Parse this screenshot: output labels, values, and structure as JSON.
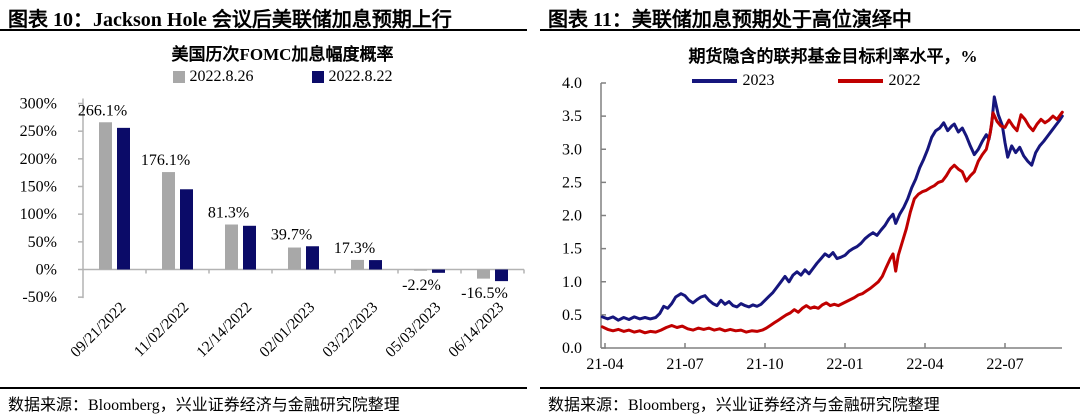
{
  "panels": {
    "left": {
      "header": "图表 10：Jackson Hole 会议后美联储加息预期上行",
      "source": "数据来源：Bloomberg，兴业证券经济与金融研究院整理"
    },
    "right": {
      "header": "图表 11：美联储加息预期处于高位演绎中",
      "source": "数据来源：Bloomberg，兴业证券经济与金融研究院整理"
    }
  },
  "colors": {
    "bar_gray": "#a8a8a8",
    "bar_navy": "#0b0b68",
    "line_navy": "#16167d",
    "line_red": "#c00000",
    "axis_left": "#b3b3b3",
    "axis_right": "#808080",
    "rule_black": "#000000"
  },
  "chart_data": [
    {
      "type": "bar",
      "title": "美国历次FOMC加息幅度概率",
      "categories": [
        "09/21/2022",
        "11/02/2022",
        "12/14/2022",
        "02/01/2023",
        "03/22/2023",
        "05/03/2023",
        "06/14/2023"
      ],
      "series": [
        {
          "name": "2022.8.26",
          "color": "#a8a8a8",
          "values": [
            266.1,
            176.1,
            81.3,
            39.7,
            17.3,
            -2.2,
            -16.5
          ]
        },
        {
          "name": "2022.8.22",
          "color": "#0b0b68",
          "values": [
            256,
            145,
            79,
            42,
            17,
            -6,
            -21
          ]
        }
      ],
      "data_labels": [
        "266.1%",
        "176.1%",
        "81.3%",
        "39.7%",
        "17.3%",
        "-2.2%",
        "-16.5%"
      ],
      "y_ticks": [
        "300%",
        "250%",
        "200%",
        "150%",
        "100%",
        "50%",
        "0%",
        "-50%"
      ],
      "y_tick_values": [
        300,
        250,
        200,
        150,
        100,
        50,
        0,
        -50
      ],
      "ylim": [
        -50,
        300
      ],
      "grid": false,
      "legend_position": "top"
    },
    {
      "type": "line",
      "title": "期货隐含的联邦基金目标利率水平，%",
      "x_ticks": [
        "21-04",
        "21-07",
        "21-10",
        "22-01",
        "22-04",
        "22-07"
      ],
      "y_ticks": [
        "4.0",
        "3.5",
        "3.0",
        "2.5",
        "2.0",
        "1.5",
        "1.0",
        "0.5",
        "0.0"
      ],
      "ylim": [
        0,
        4
      ],
      "x_domain_months": [
        -0.1,
        17.15
      ],
      "grid": false,
      "legend_position": "top",
      "series": [
        {
          "name": "2023",
          "color": "#16167d",
          "points": [
            [
              -0.1,
              0.47
            ],
            [
              0.1,
              0.44
            ],
            [
              0.3,
              0.47
            ],
            [
              0.5,
              0.42
            ],
            [
              0.7,
              0.46
            ],
            [
              0.9,
              0.43
            ],
            [
              1.1,
              0.47
            ],
            [
              1.3,
              0.44
            ],
            [
              1.5,
              0.46
            ],
            [
              1.7,
              0.44
            ],
            [
              1.9,
              0.46
            ],
            [
              2.05,
              0.52
            ],
            [
              2.2,
              0.63
            ],
            [
              2.35,
              0.6
            ],
            [
              2.5,
              0.67
            ],
            [
              2.65,
              0.77
            ],
            [
              2.85,
              0.82
            ],
            [
              3.0,
              0.79
            ],
            [
              3.15,
              0.72
            ],
            [
              3.3,
              0.68
            ],
            [
              3.45,
              0.73
            ],
            [
              3.6,
              0.77
            ],
            [
              3.75,
              0.79
            ],
            [
              3.9,
              0.72
            ],
            [
              4.05,
              0.67
            ],
            [
              4.2,
              0.64
            ],
            [
              4.35,
              0.72
            ],
            [
              4.5,
              0.66
            ],
            [
              4.65,
              0.7
            ],
            [
              4.8,
              0.64
            ],
            [
              4.95,
              0.62
            ],
            [
              5.1,
              0.67
            ],
            [
              5.25,
              0.64
            ],
            [
              5.4,
              0.62
            ],
            [
              5.55,
              0.65
            ],
            [
              5.7,
              0.63
            ],
            [
              5.85,
              0.66
            ],
            [
              6.0,
              0.72
            ],
            [
              6.15,
              0.78
            ],
            [
              6.3,
              0.84
            ],
            [
              6.45,
              0.92
            ],
            [
              6.6,
              1.0
            ],
            [
              6.75,
              1.08
            ],
            [
              6.9,
              1.0
            ],
            [
              7.05,
              1.1
            ],
            [
              7.2,
              1.15
            ],
            [
              7.35,
              1.1
            ],
            [
              7.5,
              1.18
            ],
            [
              7.65,
              1.12
            ],
            [
              7.8,
              1.2
            ],
            [
              7.95,
              1.28
            ],
            [
              8.1,
              1.35
            ],
            [
              8.25,
              1.42
            ],
            [
              8.4,
              1.38
            ],
            [
              8.55,
              1.44
            ],
            [
              8.7,
              1.35
            ],
            [
              8.85,
              1.37
            ],
            [
              9.0,
              1.4
            ],
            [
              9.15,
              1.46
            ],
            [
              9.3,
              1.5
            ],
            [
              9.45,
              1.53
            ],
            [
              9.6,
              1.58
            ],
            [
              9.75,
              1.65
            ],
            [
              9.9,
              1.7
            ],
            [
              10.05,
              1.74
            ],
            [
              10.2,
              1.7
            ],
            [
              10.35,
              1.78
            ],
            [
              10.5,
              1.85
            ],
            [
              10.65,
              1.95
            ],
            [
              10.8,
              2.02
            ],
            [
              10.9,
              1.88
            ],
            [
              11.05,
              2.02
            ],
            [
              11.2,
              2.12
            ],
            [
              11.35,
              2.25
            ],
            [
              11.5,
              2.42
            ],
            [
              11.65,
              2.55
            ],
            [
              11.8,
              2.72
            ],
            [
              11.95,
              2.85
            ],
            [
              12.1,
              3.0
            ],
            [
              12.25,
              3.18
            ],
            [
              12.4,
              3.28
            ],
            [
              12.55,
              3.32
            ],
            [
              12.7,
              3.4
            ],
            [
              12.85,
              3.28
            ],
            [
              13.0,
              3.35
            ],
            [
              13.1,
              3.38
            ],
            [
              13.25,
              3.26
            ],
            [
              13.4,
              3.32
            ],
            [
              13.55,
              3.2
            ],
            [
              13.7,
              3.05
            ],
            [
              13.85,
              2.92
            ],
            [
              14.0,
              3.0
            ],
            [
              14.15,
              3.12
            ],
            [
              14.3,
              3.22
            ],
            [
              14.4,
              3.15
            ],
            [
              14.5,
              3.38
            ],
            [
              14.6,
              3.79
            ],
            [
              14.75,
              3.52
            ],
            [
              14.9,
              3.36
            ],
            [
              15.0,
              3.1
            ],
            [
              15.1,
              2.88
            ],
            [
              15.25,
              3.05
            ],
            [
              15.4,
              2.95
            ],
            [
              15.55,
              3.03
            ],
            [
              15.7,
              2.9
            ],
            [
              15.85,
              2.82
            ],
            [
              16.0,
              2.76
            ],
            [
              16.15,
              2.95
            ],
            [
              16.3,
              3.05
            ],
            [
              16.45,
              3.12
            ],
            [
              16.6,
              3.2
            ],
            [
              16.75,
              3.28
            ],
            [
              16.9,
              3.36
            ],
            [
              17.05,
              3.44
            ],
            [
              17.15,
              3.5
            ]
          ]
        },
        {
          "name": "2022",
          "color": "#c00000",
          "points": [
            [
              -0.1,
              0.32
            ],
            [
              0.1,
              0.28
            ],
            [
              0.3,
              0.26
            ],
            [
              0.5,
              0.28
            ],
            [
              0.7,
              0.25
            ],
            [
              0.9,
              0.27
            ],
            [
              1.1,
              0.24
            ],
            [
              1.3,
              0.26
            ],
            [
              1.5,
              0.23
            ],
            [
              1.7,
              0.25
            ],
            [
              1.9,
              0.24
            ],
            [
              2.1,
              0.27
            ],
            [
              2.3,
              0.31
            ],
            [
              2.5,
              0.34
            ],
            [
              2.7,
              0.31
            ],
            [
              2.9,
              0.33
            ],
            [
              3.1,
              0.29
            ],
            [
              3.3,
              0.27
            ],
            [
              3.5,
              0.3
            ],
            [
              3.7,
              0.28
            ],
            [
              3.9,
              0.3
            ],
            [
              4.1,
              0.27
            ],
            [
              4.3,
              0.29
            ],
            [
              4.5,
              0.26
            ],
            [
              4.7,
              0.28
            ],
            [
              4.9,
              0.26
            ],
            [
              5.1,
              0.27
            ],
            [
              5.3,
              0.24
            ],
            [
              5.5,
              0.26
            ],
            [
              5.7,
              0.25
            ],
            [
              5.9,
              0.27
            ],
            [
              6.05,
              0.3
            ],
            [
              6.2,
              0.34
            ],
            [
              6.35,
              0.38
            ],
            [
              6.5,
              0.42
            ],
            [
              6.65,
              0.46
            ],
            [
              6.8,
              0.5
            ],
            [
              6.95,
              0.53
            ],
            [
              7.1,
              0.58
            ],
            [
              7.25,
              0.54
            ],
            [
              7.4,
              0.6
            ],
            [
              7.55,
              0.64
            ],
            [
              7.7,
              0.6
            ],
            [
              7.85,
              0.62
            ],
            [
              8.0,
              0.6
            ],
            [
              8.15,
              0.65
            ],
            [
              8.3,
              0.68
            ],
            [
              8.45,
              0.64
            ],
            [
              8.6,
              0.66
            ],
            [
              8.75,
              0.64
            ],
            [
              8.9,
              0.67
            ],
            [
              9.05,
              0.7
            ],
            [
              9.2,
              0.73
            ],
            [
              9.35,
              0.76
            ],
            [
              9.5,
              0.8
            ],
            [
              9.65,
              0.82
            ],
            [
              9.8,
              0.86
            ],
            [
              9.95,
              0.9
            ],
            [
              10.1,
              0.95
            ],
            [
              10.25,
              1.0
            ],
            [
              10.4,
              1.08
            ],
            [
              10.55,
              1.22
            ],
            [
              10.7,
              1.35
            ],
            [
              10.8,
              1.42
            ],
            [
              10.9,
              1.16
            ],
            [
              11.0,
              1.4
            ],
            [
              11.15,
              1.6
            ],
            [
              11.3,
              1.8
            ],
            [
              11.45,
              2.05
            ],
            [
              11.6,
              2.25
            ],
            [
              11.75,
              2.32
            ],
            [
              11.9,
              2.36
            ],
            [
              12.05,
              2.38
            ],
            [
              12.2,
              2.42
            ],
            [
              12.35,
              2.45
            ],
            [
              12.5,
              2.5
            ],
            [
              12.65,
              2.52
            ],
            [
              12.8,
              2.6
            ],
            [
              12.95,
              2.7
            ],
            [
              13.1,
              2.76
            ],
            [
              13.25,
              2.7
            ],
            [
              13.4,
              2.66
            ],
            [
              13.55,
              2.52
            ],
            [
              13.7,
              2.6
            ],
            [
              13.85,
              2.66
            ],
            [
              14.0,
              2.82
            ],
            [
              14.15,
              2.92
            ],
            [
              14.3,
              3.0
            ],
            [
              14.45,
              3.25
            ],
            [
              14.55,
              3.55
            ],
            [
              14.7,
              3.42
            ],
            [
              14.85,
              3.35
            ],
            [
              15.0,
              3.33
            ],
            [
              15.15,
              3.44
            ],
            [
              15.3,
              3.35
            ],
            [
              15.45,
              3.28
            ],
            [
              15.6,
              3.52
            ],
            [
              15.75,
              3.45
            ],
            [
              15.9,
              3.35
            ],
            [
              16.05,
              3.28
            ],
            [
              16.2,
              3.38
            ],
            [
              16.35,
              3.45
            ],
            [
              16.5,
              3.4
            ],
            [
              16.65,
              3.44
            ],
            [
              16.8,
              3.5
            ],
            [
              16.95,
              3.45
            ],
            [
              17.15,
              3.56
            ]
          ]
        }
      ]
    }
  ]
}
